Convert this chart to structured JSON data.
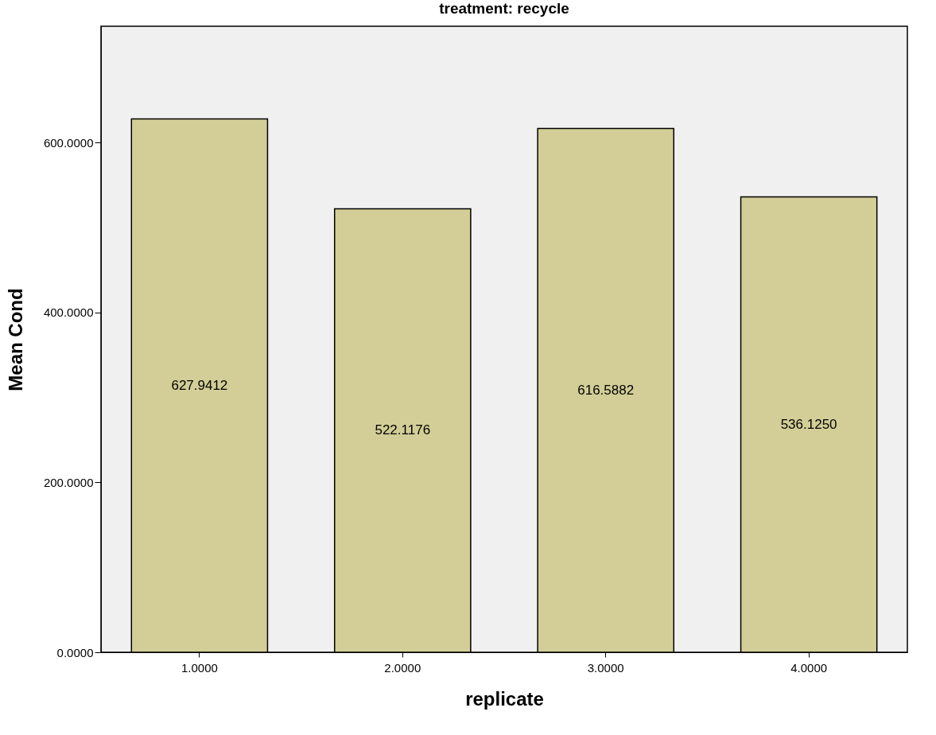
{
  "chart_data": {
    "type": "bar",
    "title": "treatment: recycle",
    "xlabel": "replicate",
    "ylabel": "Mean Cond",
    "categories": [
      "1.0000",
      "2.0000",
      "3.0000",
      "4.0000"
    ],
    "values": [
      627.9412,
      522.1176,
      616.5882,
      536.125
    ],
    "value_labels": [
      "627.9412",
      "522.1176",
      "616.5882",
      "536.1250"
    ],
    "color": "#d3ce97",
    "ylim": [
      0,
      737
    ],
    "yticks": [
      {
        "value": 0,
        "label": "0.0000"
      },
      {
        "value": 200,
        "label": "200.0000"
      },
      {
        "value": 400,
        "label": "400.0000"
      },
      {
        "value": 600,
        "label": "600.0000"
      }
    ],
    "grid": false
  }
}
